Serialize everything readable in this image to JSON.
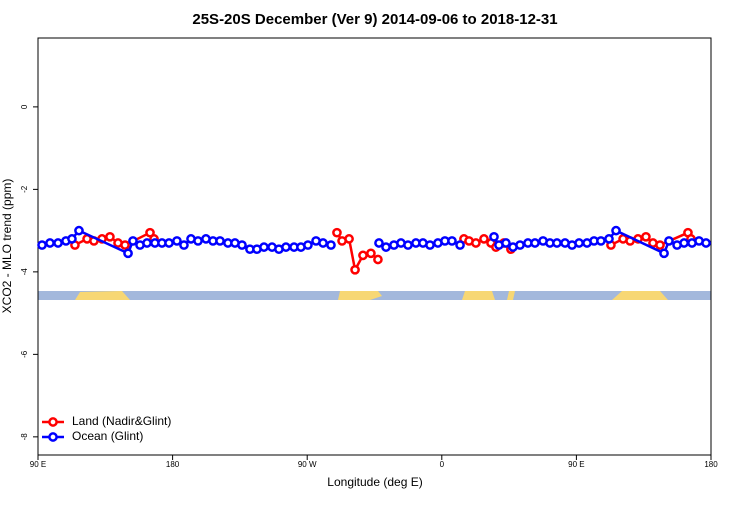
{
  "chart_data": {
    "type": "line",
    "title": "25S-20S December (Ver 9)   2014-09-06 to 2018-12-31",
    "x_label": "Longitude (deg E)",
    "y_label": "XCO2 - MLO trend (ppm)",
    "xlim": [
      90,
      540
    ],
    "ylim": [
      -8.44,
      1.67
    ],
    "xticks": [
      {
        "value": 90,
        "label": "90 E"
      },
      180,
      {
        "value": 270,
        "label": "90 W"
      },
      {
        "value": 360,
        "label": "0"
      },
      {
        "value": 450,
        "label": "90 E"
      },
      {
        "value": 540,
        "label": "180"
      }
    ],
    "yticks": [
      0,
      -2,
      -4,
      -6,
      -8
    ],
    "legend": "bottom-left",
    "series": [
      {
        "name": "Land (Nadir&Glint)",
        "color": "#ff0000",
        "x": [
          114.7,
          122.8,
          127.4,
          132.8,
          138.1,
          143.5,
          148.2,
          164.9,
          167.6,
          null,
          289.9,
          293.3,
          298.0,
          302.0,
          307.3,
          312.6,
          317.3,
          null,
          374.8,
          378.2,
          382.8,
          388.2,
          392.9,
          396.2,
          401.5,
          406.2,
          null,
          473.1,
          481.2,
          485.9,
          491.2,
          496.5,
          501.2,
          505.9,
          524.6,
          526.6
        ],
        "values": [
          -3.35,
          -3.2,
          -3.25,
          -3.2,
          -3.15,
          -3.3,
          -3.35,
          -3.05,
          -3.2,
          null,
          -3.05,
          -3.25,
          -3.2,
          -3.95,
          -3.6,
          -3.55,
          -3.7,
          null,
          -3.2,
          -3.25,
          -3.3,
          -3.2,
          -3.3,
          -3.4,
          -3.3,
          -3.45,
          null,
          -3.35,
          -3.2,
          -3.25,
          -3.2,
          -3.15,
          -3.3,
          -3.35,
          -3.05,
          -3.2
        ]
      },
      {
        "name": "Ocean (Glint)",
        "color": "#0000ff",
        "x": [
          92.7,
          98.0,
          103.4,
          108.7,
          112.7,
          117.4,
          150.2,
          153.5,
          158.2,
          162.9,
          168.2,
          172.9,
          177.6,
          182.9,
          187.6,
          192.3,
          197.0,
          202.3,
          207.0,
          211.7,
          217.0,
          221.7,
          226.4,
          231.7,
          236.4,
          241.1,
          246.5,
          251.1,
          255.8,
          261.2,
          265.8,
          270.5,
          275.9,
          280.6,
          285.9,
          null,
          318.0,
          322.7,
          328.0,
          332.7,
          337.4,
          342.7,
          347.4,
          352.1,
          357.4,
          362.1,
          366.8,
          372.2,
          null,
          394.9,
          398.2,
          402.9,
          407.6,
          412.3,
          417.6,
          422.3,
          427.7,
          432.3,
          437.0,
          442.4,
          447.1,
          451.8,
          457.1,
          461.8,
          466.4,
          471.8,
          476.5,
          508.6,
          511.9,
          517.3,
          522.0,
          527.3,
          532.0,
          536.7
        ],
        "values": [
          -3.35,
          -3.3,
          -3.3,
          -3.25,
          -3.2,
          -3.0,
          -3.55,
          -3.25,
          -3.35,
          -3.3,
          -3.3,
          -3.3,
          -3.3,
          -3.25,
          -3.35,
          -3.2,
          -3.25,
          -3.2,
          -3.25,
          -3.25,
          -3.3,
          -3.3,
          -3.35,
          -3.45,
          -3.45,
          -3.4,
          -3.4,
          -3.45,
          -3.4,
          -3.4,
          -3.4,
          -3.35,
          -3.25,
          -3.3,
          -3.35,
          null,
          -3.3,
          -3.4,
          -3.35,
          -3.3,
          -3.35,
          -3.3,
          -3.3,
          -3.35,
          -3.3,
          -3.25,
          -3.25,
          -3.35,
          null,
          -3.15,
          -3.35,
          -3.3,
          -3.4,
          -3.35,
          -3.3,
          -3.3,
          -3.25,
          -3.3,
          -3.3,
          -3.3,
          -3.35,
          -3.3,
          -3.3,
          -3.25,
          -3.25,
          -3.2,
          -3.0,
          -3.55,
          -3.25,
          -3.35,
          -3.3,
          -3.3,
          -3.25,
          -3.3
        ]
      }
    ]
  }
}
